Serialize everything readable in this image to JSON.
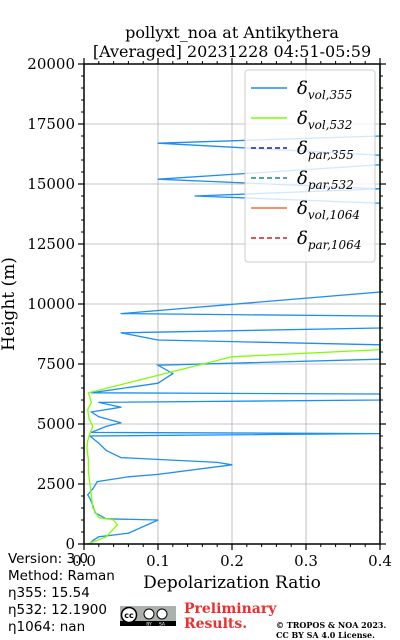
{
  "chart_data": {
    "type": "line",
    "title": [
      "pollyxt_noa at Antikythera",
      "[Averaged] 20231228 04:51-05:59"
    ],
    "xlabel": "Depolarization Ratio",
    "ylabel": "Height (m)",
    "xlim": [
      0,
      0.4
    ],
    "ylim": [
      0,
      20000
    ],
    "xticks": [
      "0.0",
      "0.1",
      "0.2",
      "0.3",
      "0.4"
    ],
    "yticks": [
      "0",
      "2500",
      "5000",
      "7500",
      "10000",
      "12500",
      "15000",
      "17500",
      "20000"
    ],
    "grid": true,
    "legend_position": "top-right",
    "series": [
      {
        "name": "δvol,355",
        "color": "#1f8ef1",
        "style": "solid",
        "points": [
          [
            0.008,
            0
          ],
          [
            0.012,
            150
          ],
          [
            0.02,
            300
          ],
          [
            0.06,
            450
          ],
          [
            0.1,
            1000
          ],
          [
            0.03,
            1050
          ],
          [
            0.015,
            1300
          ],
          [
            0.012,
            1600
          ],
          [
            0.008,
            1900
          ],
          [
            0.005,
            2050
          ],
          [
            0.012,
            2300
          ],
          [
            0.018,
            2600
          ],
          [
            0.06,
            2800
          ],
          [
            0.1,
            2900
          ],
          [
            0.2,
            3300
          ],
          [
            0.18,
            3400
          ],
          [
            0.05,
            3600
          ],
          [
            0.03,
            3900
          ],
          [
            0.02,
            4200
          ],
          [
            0.008,
            4500
          ],
          [
            0.4,
            4600
          ],
          [
            0.01,
            4650
          ],
          [
            0.03,
            4900
          ],
          [
            0.05,
            5050
          ],
          [
            0.02,
            5300
          ],
          [
            0.01,
            5500
          ],
          [
            0.05,
            5700
          ],
          [
            0.02,
            5900
          ],
          [
            0.4,
            6000
          ],
          [
            0.4,
            6250
          ],
          [
            0.01,
            6300
          ],
          [
            0.1,
            6700
          ],
          [
            0.12,
            7100
          ],
          [
            0.1,
            7450
          ],
          [
            0.4,
            7700
          ],
          [
            0.4,
            8300
          ],
          [
            0.1,
            8500
          ],
          [
            0.05,
            8800
          ],
          [
            0.4,
            9000
          ],
          [
            0.4,
            9500
          ],
          [
            0.05,
            9600
          ],
          [
            0.4,
            10500
          ],
          [
            0.4,
            11700
          ],
          [
            0.4,
            12300
          ],
          [
            0.4,
            13400
          ],
          [
            0.4,
            14200
          ],
          [
            0.15,
            14500
          ],
          [
            0.4,
            14800
          ],
          [
            0.1,
            15200
          ],
          [
            0.4,
            15800
          ],
          [
            0.4,
            16200
          ],
          [
            0.1,
            16700
          ],
          [
            0.4,
            17000
          ],
          [
            0.4,
            17500
          ],
          [
            0.4,
            18100
          ],
          [
            0.4,
            18500
          ],
          [
            0.4,
            19000
          ],
          [
            0.4,
            19700
          ],
          [
            0.4,
            20000
          ]
        ]
      },
      {
        "name": "δvol,532",
        "color": "#7fff00",
        "style": "solid",
        "points": [
          [
            0.005,
            0
          ],
          [
            0.03,
            300
          ],
          [
            0.045,
            800
          ],
          [
            0.04,
            1000
          ],
          [
            0.02,
            1100
          ],
          [
            0.012,
            1500
          ],
          [
            0.01,
            2000
          ],
          [
            0.008,
            2500
          ],
          [
            0.006,
            3000
          ],
          [
            0.006,
            3500
          ],
          [
            0.004,
            4000
          ],
          [
            0.005,
            4300
          ],
          [
            0.008,
            4600
          ],
          [
            0.012,
            4900
          ],
          [
            0.007,
            5200
          ],
          [
            0.005,
            5600
          ],
          [
            0.01,
            5900
          ],
          [
            0.006,
            6300
          ],
          [
            0.2,
            7800
          ],
          [
            0.4,
            8100
          ],
          [
            0.4,
            9200
          ],
          [
            0.4,
            9700
          ],
          [
            0.4,
            10300
          ],
          [
            0.4,
            11100
          ],
          [
            0.4,
            11600
          ],
          [
            0.4,
            12200
          ],
          [
            0.4,
            12800
          ],
          [
            0.4,
            13600
          ],
          [
            0.4,
            14300
          ],
          [
            0.4,
            15600
          ],
          [
            0.4,
            16400
          ],
          [
            0.4,
            17200
          ],
          [
            0.4,
            18000
          ],
          [
            0.4,
            18700
          ],
          [
            0.4,
            19300
          ],
          [
            0.4,
            19900
          ]
        ]
      },
      {
        "name": "δpar,355",
        "color": "#1a1aa8",
        "style": "dashed",
        "points": []
      },
      {
        "name": "δpar,532",
        "color": "#1f8a6e",
        "style": "dashed",
        "points": []
      },
      {
        "name": "δvol,1064",
        "color": "#f07030",
        "style": "solid",
        "points": []
      },
      {
        "name": "δpar,1064",
        "color": "#cc2020",
        "style": "dashed",
        "points": []
      }
    ]
  },
  "legend": [
    {
      "base": "δ",
      "sub": "vol,355"
    },
    {
      "base": "δ",
      "sub": "vol,532"
    },
    {
      "base": "δ",
      "sub": "par,355"
    },
    {
      "base": "δ",
      "sub": "par,532"
    },
    {
      "base": "δ",
      "sub": "vol,1064"
    },
    {
      "base": "δ",
      "sub": "par,1064"
    }
  ],
  "info": {
    "version": "Version: 3.0",
    "method": "Method: Raman",
    "eta355": "η355:  15.54",
    "eta532": "η532: 12.1900",
    "eta1064": "η1064:    nan"
  },
  "preliminary": [
    "Preliminary",
    "Results."
  ],
  "credit": [
    "© TROPOS & NOA 2023.",
    "CC BY SA 4.0 License."
  ],
  "license_badge": [
    "cc",
    "BY",
    "SA"
  ]
}
